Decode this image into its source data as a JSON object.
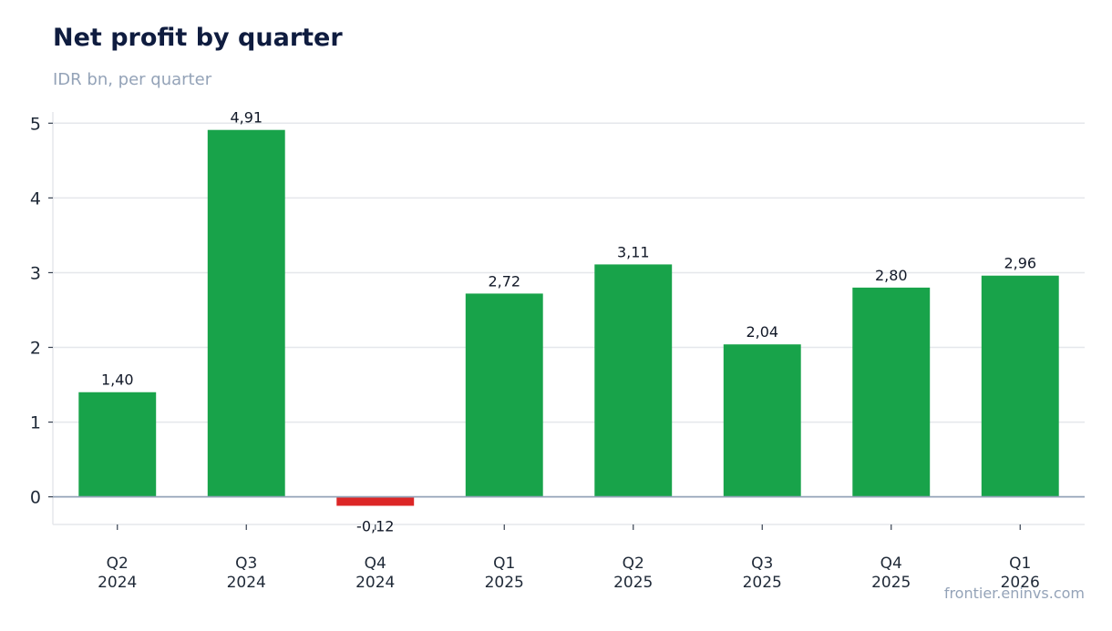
{
  "header": {
    "title": "Net profit by quarter",
    "subtitle": "IDR bn, per quarter"
  },
  "footer": {
    "credit": "frontier.eninvs.com"
  },
  "chart_data": {
    "type": "bar",
    "categories": [
      [
        "Q2",
        "2024"
      ],
      [
        "Q3",
        "2024"
      ],
      [
        "Q4",
        "2024"
      ],
      [
        "Q1",
        "2025"
      ],
      [
        "Q2",
        "2025"
      ],
      [
        "Q3",
        "2025"
      ],
      [
        "Q4",
        "2025"
      ],
      [
        "Q1",
        "2026"
      ]
    ],
    "values": [
      1.4,
      4.91,
      -0.12,
      2.72,
      3.11,
      2.04,
      2.8,
      2.96
    ],
    "value_labels": [
      "1,40",
      "4,91",
      "-0,12",
      "2,72",
      "3,11",
      "2,04",
      "2,80",
      "2,96"
    ],
    "ylim": [
      -0.37,
      5.15
    ],
    "yticks": [
      0,
      1,
      2,
      3,
      4,
      5
    ],
    "grid": "horizontal",
    "colors": {
      "positive": "#18a34a",
      "negative": "#dc2626",
      "grid": "#e5e7eb",
      "zero_line": "#94a3b8"
    }
  }
}
